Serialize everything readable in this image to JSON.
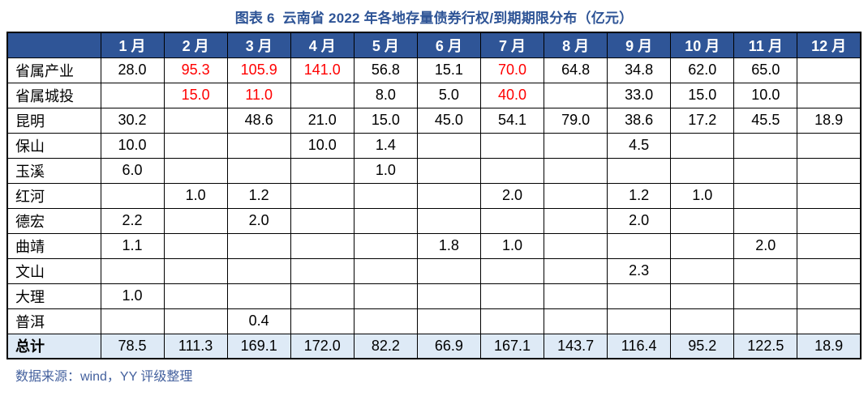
{
  "title": "图表 6  云南省 2022 年各地存量债券行权/到期期限分布（亿元）",
  "footer": {
    "source": "数据来源：wind，YY 评级整理"
  },
  "colors": {
    "title_text": "#2E5496",
    "header_bg": "#2F5597",
    "header_text": "#FFFFFF",
    "highlight_red": "#FF0000",
    "total_row_bg": "#DEEAF6",
    "border": "#000000",
    "source_text": "#44619E"
  },
  "chart_data": {
    "type": "table",
    "title": "图表 6  云南省 2022 年各地存量债券行权/到期期限分布（亿元）",
    "unit": "亿元",
    "corner_label": "",
    "categories": [
      "1 月",
      "2 月",
      "3 月",
      "4 月",
      "5 月",
      "6 月",
      "7 月",
      "8 月",
      "9 月",
      "10 月",
      "11 月",
      "12 月"
    ],
    "rows": [
      {
        "label": "省属产业",
        "values": [
          "28.0",
          "95.3",
          "105.9",
          "141.0",
          "56.8",
          "15.1",
          "70.0",
          "64.8",
          "34.8",
          "62.0",
          "65.0",
          ""
        ],
        "red_indices": [
          1,
          2,
          3,
          6
        ]
      },
      {
        "label": "省属城投",
        "values": [
          "",
          "15.0",
          "11.0",
          "",
          "8.0",
          "5.0",
          "40.0",
          "",
          "33.0",
          "15.0",
          "10.0",
          ""
        ],
        "red_indices": [
          1,
          2,
          6
        ]
      },
      {
        "label": "昆明",
        "values": [
          "30.2",
          "",
          "48.6",
          "21.0",
          "15.0",
          "45.0",
          "54.1",
          "79.0",
          "38.6",
          "17.2",
          "45.5",
          "18.9"
        ],
        "red_indices": []
      },
      {
        "label": "保山",
        "values": [
          "10.0",
          "",
          "",
          "10.0",
          "1.4",
          "",
          "",
          "",
          "4.5",
          "",
          "",
          ""
        ],
        "red_indices": []
      },
      {
        "label": "玉溪",
        "values": [
          "6.0",
          "",
          "",
          "",
          "1.0",
          "",
          "",
          "",
          "",
          "",
          "",
          ""
        ],
        "red_indices": []
      },
      {
        "label": "红河",
        "values": [
          "",
          "1.0",
          "1.2",
          "",
          "",
          "",
          "2.0",
          "",
          "1.2",
          "1.0",
          "",
          ""
        ],
        "red_indices": []
      },
      {
        "label": "德宏",
        "values": [
          "2.2",
          "",
          "2.0",
          "",
          "",
          "",
          "",
          "",
          "2.0",
          "",
          "",
          ""
        ],
        "red_indices": []
      },
      {
        "label": "曲靖",
        "values": [
          "1.1",
          "",
          "",
          "",
          "",
          "1.8",
          "1.0",
          "",
          "",
          "",
          "2.0",
          ""
        ],
        "red_indices": []
      },
      {
        "label": "文山",
        "values": [
          "",
          "",
          "",
          "",
          "",
          "",
          "",
          "",
          "2.3",
          "",
          "",
          ""
        ],
        "red_indices": []
      },
      {
        "label": "大理",
        "values": [
          "1.0",
          "",
          "",
          "",
          "",
          "",
          "",
          "",
          "",
          "",
          "",
          ""
        ],
        "red_indices": []
      },
      {
        "label": "普洱",
        "values": [
          "",
          "",
          "0.4",
          "",
          "",
          "",
          "",
          "",
          "",
          "",
          "",
          ""
        ],
        "red_indices": []
      }
    ],
    "total_row": {
      "label": "总计",
      "values": [
        "78.5",
        "111.3",
        "169.1",
        "172.0",
        "82.2",
        "66.9",
        "167.1",
        "143.7",
        "116.4",
        "95.2",
        "122.5",
        "18.9"
      ]
    }
  }
}
